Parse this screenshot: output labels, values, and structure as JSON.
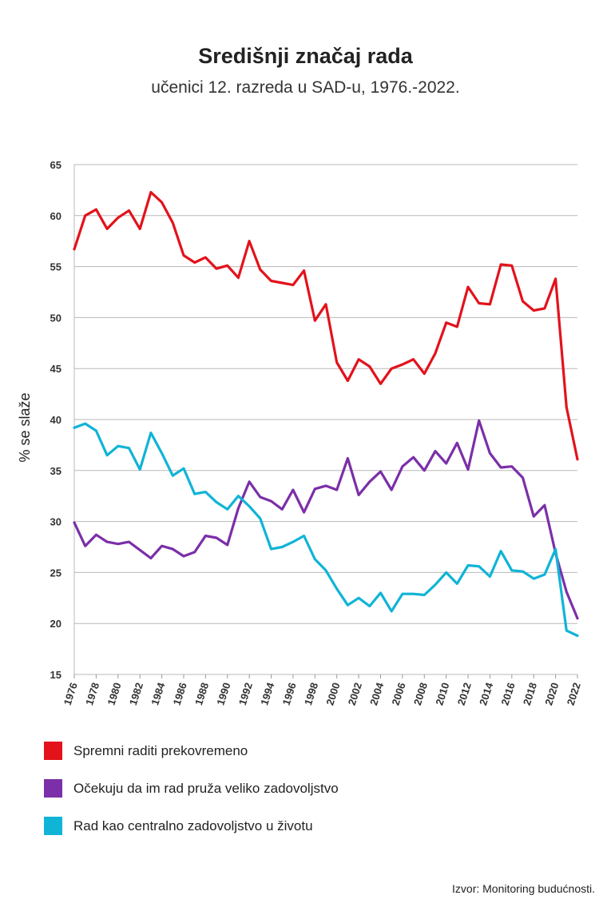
{
  "header": {
    "title": "Središnji značaj rada",
    "subtitle": "učenici 12. razreda u SAD-u, 1976.-2022."
  },
  "source": "Izvor: Monitoring budućnosti.",
  "chart_data": {
    "type": "line",
    "title": "Središnji značaj rada",
    "subtitle": "učenici 12. razreda u SAD-u, 1976.-2022.",
    "ylabel": "% se slaže",
    "xlabel": "",
    "ylim": [
      15,
      65
    ],
    "yticks": [
      15,
      20,
      25,
      30,
      35,
      40,
      45,
      50,
      55,
      60,
      65
    ],
    "xlim": [
      1976,
      2022
    ],
    "xticks": [
      1976,
      1978,
      1980,
      1982,
      1984,
      1986,
      1988,
      1990,
      1992,
      1994,
      1996,
      1998,
      2000,
      2002,
      2004,
      2006,
      2008,
      2010,
      2012,
      2014,
      2016,
      2018,
      2020,
      2022
    ],
    "grid": "horizontal",
    "legend_position": "bottom",
    "x": [
      1976,
      1977,
      1978,
      1979,
      1980,
      1981,
      1982,
      1983,
      1984,
      1985,
      1986,
      1987,
      1988,
      1989,
      1990,
      1991,
      1992,
      1993,
      1994,
      1995,
      1996,
      1997,
      1998,
      1999,
      2000,
      2001,
      2002,
      2003,
      2004,
      2005,
      2006,
      2007,
      2008,
      2009,
      2010,
      2011,
      2012,
      2013,
      2014,
      2015,
      2016,
      2017,
      2018,
      2019,
      2020,
      2021,
      2022
    ],
    "series": [
      {
        "name": "Spremni raditi prekovremeno",
        "color": "#e3121b",
        "values": [
          56.7,
          60.0,
          60.6,
          58.7,
          59.8,
          60.5,
          58.7,
          62.3,
          61.3,
          59.3,
          56.1,
          55.4,
          55.9,
          54.8,
          55.1,
          53.9,
          57.5,
          54.7,
          53.6,
          53.4,
          53.2,
          54.6,
          49.7,
          51.3,
          45.6,
          43.8,
          45.9,
          45.2,
          43.5,
          45.0,
          45.4,
          45.9,
          44.5,
          46.5,
          49.5,
          49.1,
          53.0,
          51.4,
          51.3,
          55.2,
          55.1,
          51.6,
          50.7,
          50.9,
          53.8,
          41.2,
          36.1
        ]
      },
      {
        "name": "Očekuju da im rad pruža veliko zadovoljstvo",
        "color": "#7b2fa8",
        "values": [
          29.9,
          27.6,
          28.7,
          28.0,
          27.8,
          28.0,
          27.2,
          26.4,
          27.6,
          27.3,
          26.6,
          27.0,
          28.6,
          28.4,
          27.7,
          31.3,
          33.9,
          32.4,
          32.0,
          31.2,
          33.1,
          30.9,
          33.2,
          33.5,
          33.1,
          36.2,
          32.6,
          33.9,
          34.9,
          33.1,
          35.4,
          36.3,
          35.0,
          36.9,
          35.7,
          37.7,
          35.1,
          39.9,
          36.7,
          35.3,
          35.4,
          34.3,
          30.5,
          31.6,
          26.9,
          23.1,
          20.5
        ]
      },
      {
        "name": "Rad kao centralno zadovoljstvo u životu",
        "color": "#10b4d6",
        "values": [
          39.2,
          39.6,
          38.9,
          36.5,
          37.4,
          37.2,
          35.1,
          38.7,
          36.7,
          34.5,
          35.2,
          32.7,
          32.9,
          31.9,
          31.2,
          32.5,
          31.5,
          30.3,
          27.3,
          27.5,
          28.0,
          28.6,
          26.3,
          25.2,
          23.4,
          21.8,
          22.5,
          21.7,
          23.0,
          21.2,
          22.9,
          22.9,
          22.8,
          23.8,
          25.0,
          23.9,
          25.7,
          25.6,
          24.6,
          27.1,
          25.2,
          25.1,
          24.4,
          24.8,
          27.3,
          19.3,
          18.8
        ]
      }
    ]
  }
}
